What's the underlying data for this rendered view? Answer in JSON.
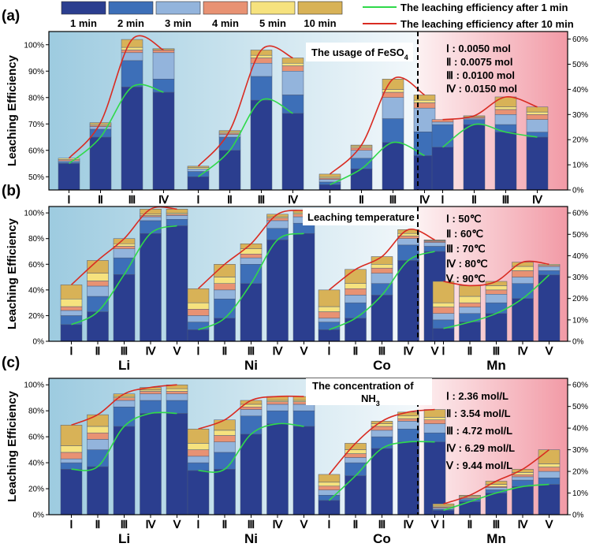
{
  "colors": {
    "c1": "#2b3e8f",
    "c2": "#3d6fb8",
    "c3": "#93b4dc",
    "c4": "#e89273",
    "c5": "#f6e27e",
    "c10": "#d8b257",
    "line1": "#2fd94a",
    "line10": "#d92b22"
  },
  "legend": {
    "items": [
      "1 min",
      "2 min",
      "3 min",
      "4 min",
      "5 min",
      "10 min"
    ],
    "line1": "The leaching efficiency after 1 min",
    "line10": "The leaching efficiency after 10 min"
  },
  "ylabel": "Leaching Efficiency",
  "metals": [
    "Li",
    "Ni",
    "Co",
    "Mn"
  ],
  "chart_data": [
    {
      "type": "bar",
      "panel": "(a)",
      "title": "The usage of FeSO",
      "title_sub": "4",
      "left_axis": {
        "ylim": [
          45,
          105
        ],
        "ticks": [
          50,
          60,
          70,
          80,
          90,
          100
        ],
        "labels": [
          "50%",
          "60%",
          "70%",
          "80%",
          "90%",
          "100%"
        ]
      },
      "right_axis": {
        "ylim": [
          0,
          63
        ],
        "ticks": [
          0,
          10,
          20,
          30,
          40,
          50,
          60
        ],
        "labels": [
          "0%",
          "10%",
          "20%",
          "30%",
          "40%",
          "50%",
          "60%"
        ]
      },
      "categories": [
        "Ⅰ",
        "Ⅱ",
        "Ⅲ",
        "Ⅳ"
      ],
      "conditions": [
        "Ⅰ : 0.0050 mol",
        "Ⅱ : 0.0075 mol",
        "Ⅲ : 0.0100 mol",
        "Ⅳ : 0.0150 mol"
      ],
      "series": {
        "Li": [
          [
            55,
            55.5,
            56,
            56.5,
            57,
            57
          ],
          [
            65,
            68,
            69,
            69.5,
            70,
            70.5
          ],
          [
            84,
            94,
            97,
            98,
            99,
            102
          ],
          [
            82,
            87,
            97,
            98,
            98.5,
            98
          ]
        ],
        "Ni": [
          [
            50,
            52,
            53,
            53,
            53.5,
            54
          ],
          [
            60,
            65,
            66,
            66.5,
            67,
            67.5
          ],
          [
            79,
            88,
            93,
            95,
            96,
            98
          ],
          [
            74,
            81,
            90,
            92,
            93,
            95
          ]
        ],
        "Co": [
          [
            47,
            48,
            49,
            49.5,
            50,
            51
          ],
          [
            53,
            57,
            60,
            61,
            61.5,
            62
          ],
          [
            63,
            72,
            80,
            82,
            83,
            87
          ],
          [
            58,
            67,
            76,
            78,
            79,
            81
          ]
        ],
        "Mn": [
          [
            17,
            26,
            27,
            28,
            28,
            28
          ],
          [
            26,
            28,
            28.5,
            29,
            29,
            29.5
          ],
          [
            23,
            26,
            30,
            32,
            33,
            37
          ],
          [
            21,
            23,
            28,
            30,
            31,
            33
          ]
        ]
      }
    },
    {
      "type": "bar",
      "panel": "(b)",
      "title": "Leaching temperature",
      "title_sub": "",
      "left_axis": {
        "ylim": [
          0,
          105
        ],
        "ticks": [
          0,
          20,
          40,
          60,
          80,
          100
        ],
        "labels": [
          "0%",
          "20%",
          "40%",
          "60%",
          "80%",
          "100%"
        ]
      },
      "right_axis": {
        "ylim": [
          0,
          63
        ],
        "ticks": [
          0,
          10,
          20,
          30,
          40,
          50,
          60
        ],
        "labels": [
          "0%",
          "10%",
          "20%",
          "30%",
          "40%",
          "50%",
          "60%"
        ]
      },
      "categories": [
        "Ⅰ",
        "Ⅱ",
        "Ⅲ",
        "Ⅳ",
        "Ⅴ"
      ],
      "conditions": [
        "Ⅰ : 50℃",
        "Ⅱ : 60℃",
        "Ⅲ : 70℃",
        "Ⅳ : 80℃",
        "Ⅴ : 90℃"
      ],
      "series": {
        "Li": [
          [
            13,
            20,
            24,
            27,
            33,
            44
          ],
          [
            23,
            35,
            43,
            47,
            53,
            63
          ],
          [
            52,
            65,
            72,
            74,
            76,
            80
          ],
          [
            84,
            94,
            97,
            98,
            99,
            103
          ],
          [
            90,
            95,
            98,
            99,
            100,
            103
          ]
        ],
        "Ni": [
          [
            9,
            15,
            20,
            25,
            30,
            41
          ],
          [
            18,
            33,
            40,
            45,
            50,
            60
          ],
          [
            45,
            60,
            65,
            68,
            72,
            76
          ],
          [
            79,
            88,
            94,
            96,
            97,
            99
          ],
          [
            84,
            92,
            97,
            99,
            100,
            102
          ]
        ],
        "Co": [
          [
            9,
            15,
            18,
            23,
            27,
            40
          ],
          [
            18,
            30,
            36,
            41,
            45,
            56
          ],
          [
            36,
            45,
            53,
            57,
            60,
            66
          ],
          [
            63,
            75,
            80,
            82,
            84,
            87
          ],
          [
            70,
            74,
            77,
            78,
            78.5,
            79
          ]
        ],
        "Mn": [
          [
            6,
            10,
            13,
            16,
            18,
            28
          ],
          [
            9,
            13,
            16,
            18,
            21,
            26
          ],
          [
            13,
            18,
            22,
            24,
            26,
            28
          ],
          [
            20,
            27,
            30,
            33,
            35,
            37
          ],
          [
            31,
            33,
            35,
            35.5,
            36,
            36
          ]
        ]
      }
    },
    {
      "type": "bar",
      "panel": "(c)",
      "title": "The concentration of",
      "title2": "NH",
      "title_sub": "3",
      "left_axis": {
        "ylim": [
          0,
          105
        ],
        "ticks": [
          0,
          20,
          40,
          60,
          80,
          100
        ],
        "labels": [
          "0%",
          "20%",
          "40%",
          "60%",
          "80%",
          "100%"
        ]
      },
      "right_axis": {
        "ylim": [
          0,
          63
        ],
        "ticks": [
          0,
          10,
          20,
          30,
          40,
          50,
          60
        ],
        "labels": [
          "0%",
          "10%",
          "20%",
          "30%",
          "40%",
          "50%",
          "60%"
        ]
      },
      "categories": [
        "Ⅰ",
        "Ⅱ",
        "Ⅲ",
        "Ⅳ",
        "Ⅴ"
      ],
      "conditions": [
        "Ⅰ : 2.36 mol/L",
        "Ⅱ : 3.54 mol/L",
        "Ⅲ : 4.72 mol/L",
        "Ⅳ : 6.29 mol/L",
        "Ⅴ : 9.44 mol/L"
      ],
      "series": {
        "Li": [
          [
            35,
            40,
            43,
            48,
            53,
            69
          ],
          [
            37,
            50,
            58,
            63,
            68,
            77
          ],
          [
            68,
            83,
            88,
            90,
            91,
            93
          ],
          [
            78,
            88,
            93,
            95,
            96,
            98
          ],
          [
            78,
            88,
            93,
            95,
            97,
            100
          ]
        ],
        "Ni": [
          [
            34,
            40,
            45,
            50,
            55,
            66
          ],
          [
            35,
            48,
            56,
            61,
            65,
            73
          ],
          [
            62,
            76,
            81,
            83,
            85,
            88
          ],
          [
            70,
            80,
            85,
            87,
            88,
            91
          ],
          [
            68,
            80,
            85,
            87,
            88,
            91
          ]
        ],
        "Co": [
          [
            11,
            15,
            19,
            22,
            25,
            31
          ],
          [
            30,
            40,
            44,
            47,
            50,
            55
          ],
          [
            51,
            60,
            65,
            68,
            70,
            72
          ],
          [
            56,
            66,
            72,
            74,
            76,
            79
          ],
          [
            56,
            63,
            70,
            73,
            75,
            81
          ]
        ],
        "Mn": [
          [
            2,
            2.5,
            3,
            3.5,
            4,
            5
          ],
          [
            6,
            7,
            7.5,
            8,
            8.5,
            9
          ],
          [
            10,
            11.5,
            12.5,
            13,
            14,
            15.5
          ],
          [
            13,
            16,
            17.5,
            18.5,
            19.5,
            21
          ],
          [
            14,
            17,
            20,
            22,
            23.5,
            30
          ]
        ]
      }
    }
  ]
}
